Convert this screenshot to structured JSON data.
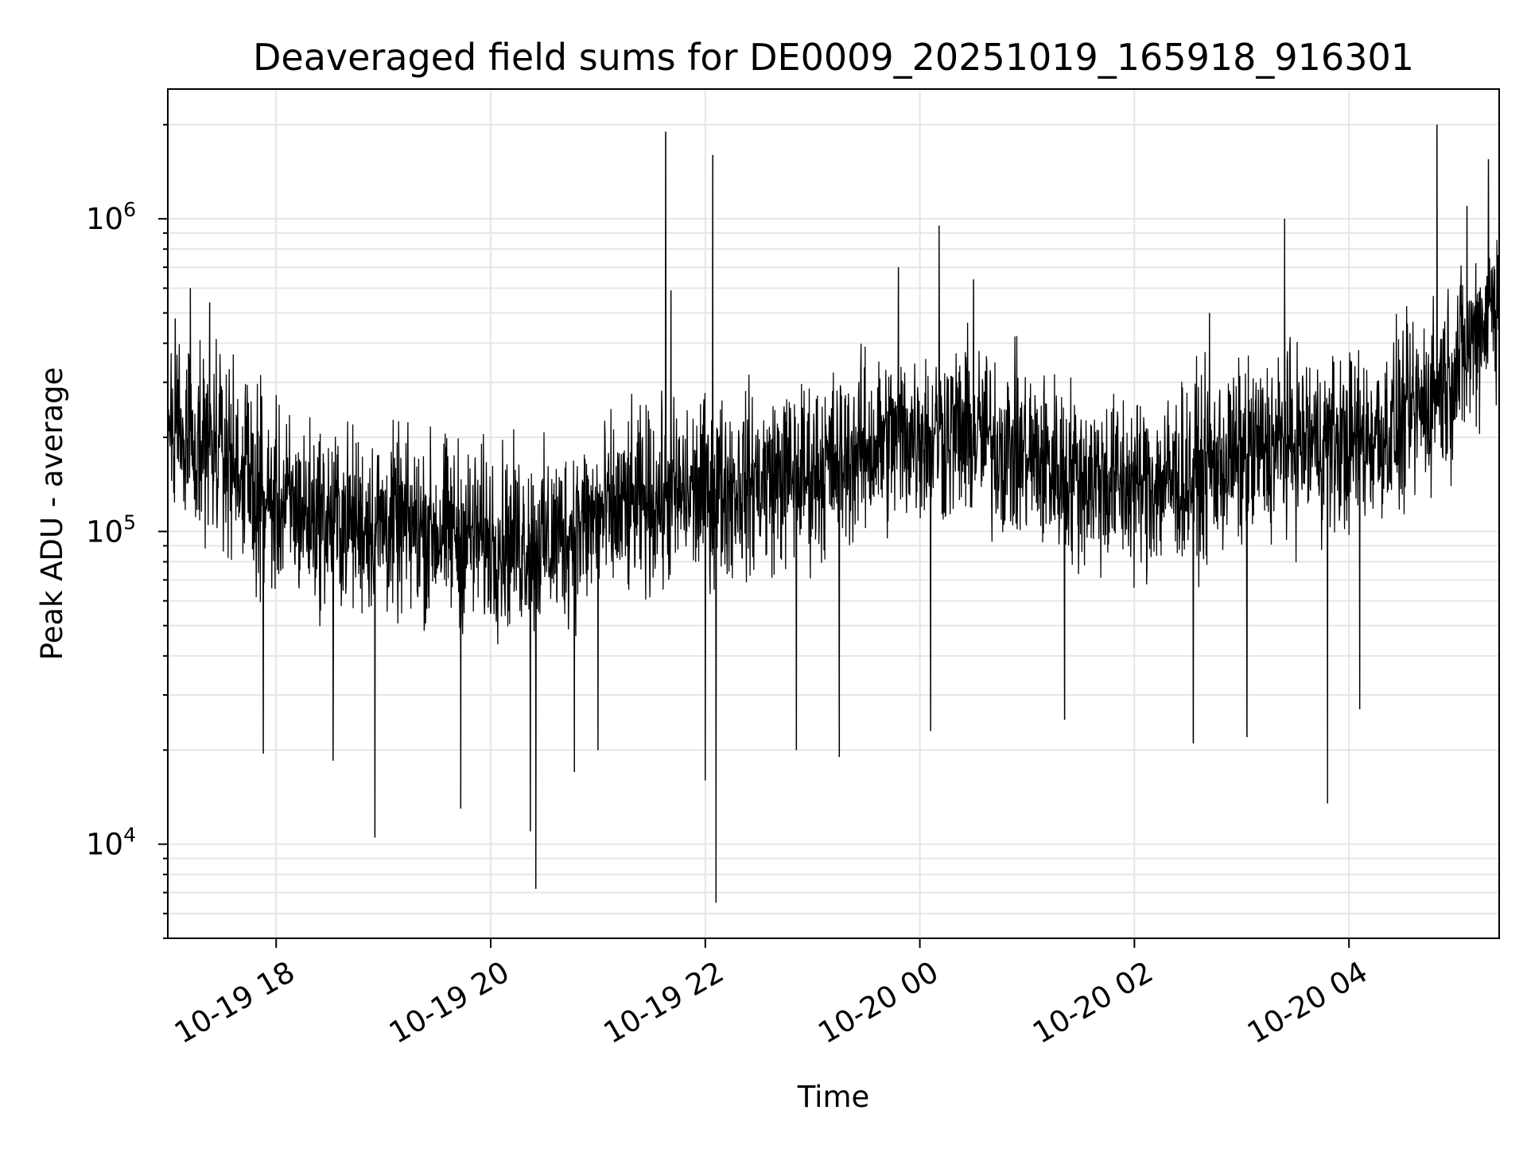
{
  "chart_data": {
    "type": "line",
    "title": "Deaveraged field sums for DE0009_20251019_165918_916301",
    "xlabel": "Time",
    "ylabel": "Peak ADU - average",
    "yscale": "log",
    "ylim": [
      5000,
      2600000
    ],
    "xlim_hours": [
      16.99,
      29.4
    ],
    "x_ticks": [
      {
        "label": "10-19 18",
        "hours": 18
      },
      {
        "label": "10-19 20",
        "hours": 20
      },
      {
        "label": "10-19 22",
        "hours": 22
      },
      {
        "label": "10-20 00",
        "hours": 24
      },
      {
        "label": "10-20 02",
        "hours": 26
      },
      {
        "label": "10-20 04",
        "hours": 28
      }
    ],
    "y_ticks": [
      {
        "base": "10",
        "exp": "4",
        "value": 10000
      },
      {
        "base": "10",
        "exp": "5",
        "value": 100000
      },
      {
        "base": "10",
        "exp": "6",
        "value": 1000000
      }
    ],
    "grid": true,
    "line_color": "#000000",
    "grid_color": "#e6e6e6",
    "series": [
      {
        "name": "Deaveraged field sum",
        "baseline": [
          [
            16.99,
            230000
          ],
          [
            17.3,
            200000
          ],
          [
            17.6,
            170000
          ],
          [
            17.9,
            125000
          ],
          [
            18.5,
            110000
          ],
          [
            19.0,
            105000
          ],
          [
            19.6,
            100000
          ],
          [
            20.0,
            95000
          ],
          [
            20.5,
            92000
          ],
          [
            21.0,
            110000
          ],
          [
            21.5,
            125000
          ],
          [
            22.0,
            135000
          ],
          [
            22.5,
            145000
          ],
          [
            23.0,
            155000
          ],
          [
            23.5,
            185000
          ],
          [
            24.0,
            210000
          ],
          [
            24.5,
            205000
          ],
          [
            25.0,
            175000
          ],
          [
            25.5,
            150000
          ],
          [
            26.0,
            140000
          ],
          [
            26.5,
            150000
          ],
          [
            27.0,
            175000
          ],
          [
            27.5,
            195000
          ],
          [
            28.0,
            190000
          ],
          [
            28.5,
            220000
          ],
          [
            29.0,
            330000
          ],
          [
            29.4,
            600000
          ]
        ],
        "spikes": [
          [
            17.06,
            480000
          ],
          [
            17.2,
            600000
          ],
          [
            17.38,
            540000
          ],
          [
            17.88,
            19500
          ],
          [
            18.53,
            18500
          ],
          [
            18.92,
            10500
          ],
          [
            19.72,
            13000
          ],
          [
            20.37,
            11000
          ],
          [
            20.42,
            7200
          ],
          [
            20.78,
            17000
          ],
          [
            21.0,
            20000
          ],
          [
            21.63,
            1900000
          ],
          [
            21.68,
            590000
          ],
          [
            22.0,
            16000
          ],
          [
            22.07,
            1600000
          ],
          [
            22.1,
            6500
          ],
          [
            22.85,
            20000
          ],
          [
            23.25,
            19000
          ],
          [
            23.8,
            700000
          ],
          [
            24.1,
            23000
          ],
          [
            24.18,
            950000
          ],
          [
            24.5,
            640000
          ],
          [
            25.35,
            25000
          ],
          [
            26.55,
            21000
          ],
          [
            26.7,
            500000
          ],
          [
            27.05,
            22000
          ],
          [
            27.4,
            1000000
          ],
          [
            27.8,
            13500
          ],
          [
            28.1,
            27000
          ],
          [
            28.82,
            2000000
          ],
          [
            29.1,
            1100000
          ],
          [
            29.3,
            1550000
          ]
        ]
      }
    ]
  }
}
